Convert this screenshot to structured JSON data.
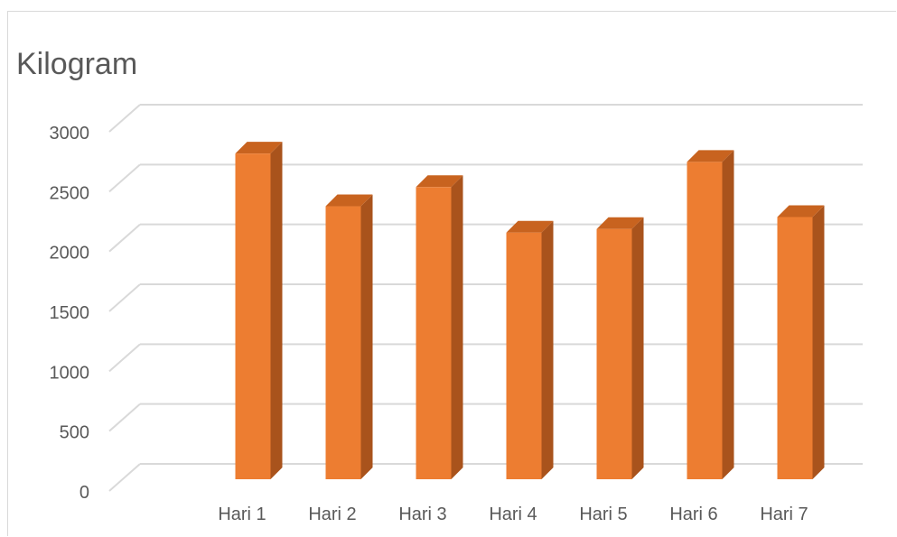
{
  "chart_data": {
    "type": "bar",
    "title": "Kilogram",
    "categories": [
      "Hari 1",
      "Hari 2",
      "Hari 3",
      "Hari 4",
      "Hari 5",
      "Hari 6",
      "Hari 7"
    ],
    "values": [
      2720,
      2280,
      2440,
      2060,
      2090,
      2650,
      2190
    ],
    "ylim": [
      0,
      3000
    ],
    "y_ticks": [
      "0",
      "500",
      "1000",
      "1500",
      "2000",
      "2500",
      "3000"
    ],
    "grid": true,
    "legend": "none",
    "style": "3d-column",
    "colors": {
      "bar_front": "#ED7D31",
      "bar_side": "#A9531C",
      "bar_top": "#C8631F",
      "gridline": "#d9d9d9",
      "text": "#595959"
    }
  }
}
